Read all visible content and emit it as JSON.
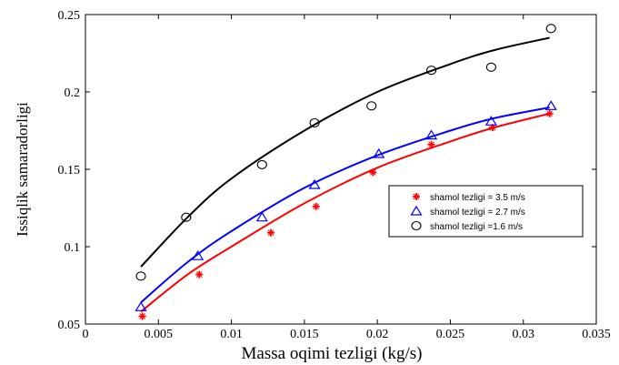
{
  "chart_data": {
    "type": "scatter",
    "title": "",
    "xlabel": "Massa oqimi tezligi (kg/s)",
    "ylabel": "Issiqlik samaradorligi",
    "xlim": [
      0,
      0.035
    ],
    "ylim": [
      0.05,
      0.25
    ],
    "xticks": [
      "0",
      "0.005",
      "0.01",
      "0.015",
      "0.02",
      "0.025",
      "0.03",
      "0.035"
    ],
    "yticks": [
      "0.05",
      "0.1",
      "0.15",
      "0.2",
      "0.25"
    ],
    "grid": false,
    "legend_position": "right",
    "series": [
      {
        "name": "shamol tezligi = 3.5 m/s",
        "marker": "plus",
        "color": "#ff0000",
        "x": [
          0.0039,
          0.0078,
          0.0127,
          0.0158,
          0.0197,
          0.0237,
          0.0279,
          0.0318
        ],
        "y": [
          0.055,
          0.082,
          0.109,
          0.126,
          0.148,
          0.166,
          0.177,
          0.186
        ],
        "fit_x": [
          0.0038,
          0.007,
          0.01,
          0.015,
          0.02,
          0.025,
          0.028,
          0.0318
        ],
        "fit_y": [
          0.058,
          0.082,
          0.1,
          0.128,
          0.151,
          0.168,
          0.177,
          0.186
        ]
      },
      {
        "name": "shamol tezligi = 2.7 m/s",
        "marker": "triangle",
        "color": "#0000ff",
        "x": [
          0.0038,
          0.0077,
          0.0121,
          0.0157,
          0.0201,
          0.0237,
          0.0278,
          0.0319
        ],
        "y": [
          0.061,
          0.094,
          0.119,
          0.14,
          0.16,
          0.172,
          0.181,
          0.191
        ],
        "fit_x": [
          0.0038,
          0.007,
          0.01,
          0.015,
          0.02,
          0.025,
          0.028,
          0.0318
        ],
        "fit_y": [
          0.064,
          0.09,
          0.11,
          0.138,
          0.159,
          0.175,
          0.183,
          0.19
        ]
      },
      {
        "name": "shamol tezligi =1.6 m/s",
        "marker": "circle",
        "color": "#000000",
        "line_color": "#000000",
        "x": [
          0.0038,
          0.0069,
          0.0121,
          0.0157,
          0.0196,
          0.0237,
          0.0278,
          0.0319
        ],
        "y": [
          0.081,
          0.119,
          0.153,
          0.18,
          0.191,
          0.214,
          0.216,
          0.241
        ],
        "fit_x": [
          0.0038,
          0.007,
          0.01,
          0.015,
          0.02,
          0.025,
          0.028,
          0.0318
        ],
        "fit_y": [
          0.087,
          0.119,
          0.144,
          0.175,
          0.2,
          0.218,
          0.227,
          0.235
        ]
      }
    ]
  }
}
